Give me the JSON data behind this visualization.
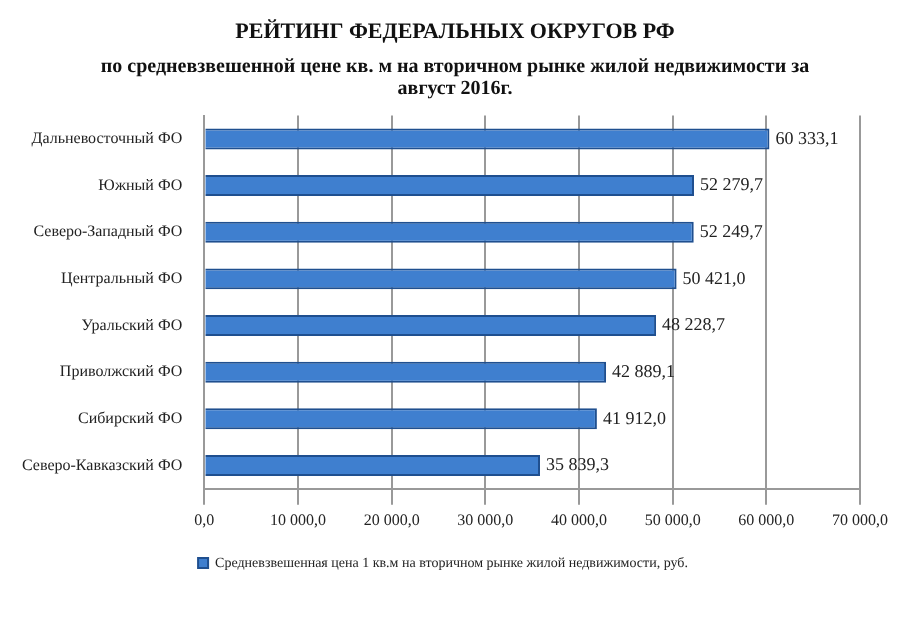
{
  "chart_data": {
    "type": "bar",
    "orientation": "horizontal",
    "title": "РЕЙТИНГ ФЕДЕРАЛЬНЫХ ОКРУГОВ РФ",
    "subtitle": "по средневзвешенной цене кв. м на вторичном рынке жилой недвижимости за август 2016г.",
    "categories": [
      "Дальневосточный ФО",
      "Южный ФО",
      "Северо-Западный ФО",
      "Центральный ФО",
      "Уральский ФО",
      "Приволжский ФО",
      "Сибирский ФО",
      "Северо-Кавказский ФО"
    ],
    "series": [
      {
        "name": "Средневзвешенная цена 1 кв.м на вторичном рынке жилой недвижимости, руб.",
        "color": "#3f7fcf",
        "values": [
          60333.1,
          52279.7,
          52249.7,
          50421.0,
          48228.7,
          42889.1,
          41912.0,
          35839.3
        ],
        "value_labels": [
          "60 333,1",
          "52 279,7",
          "52 249,7",
          "50 421,0",
          "48 228,7",
          "42 889,1",
          "41 912,0",
          "35 839,3"
        ]
      }
    ],
    "xlim": [
      0,
      70000
    ],
    "xticks": [
      {
        "value": 0,
        "label": "0,0"
      },
      {
        "value": 10000,
        "label": "10 000,0"
      },
      {
        "value": 20000,
        "label": "20 000,0"
      },
      {
        "value": 30000,
        "label": "30 000,0"
      },
      {
        "value": 40000,
        "label": "40 000,0"
      },
      {
        "value": 50000,
        "label": "50 000,0"
      },
      {
        "value": 60000,
        "label": "60 000,0"
      },
      {
        "value": 70000,
        "label": "70 000,0"
      }
    ],
    "grid": "x",
    "legend": "bottom"
  }
}
